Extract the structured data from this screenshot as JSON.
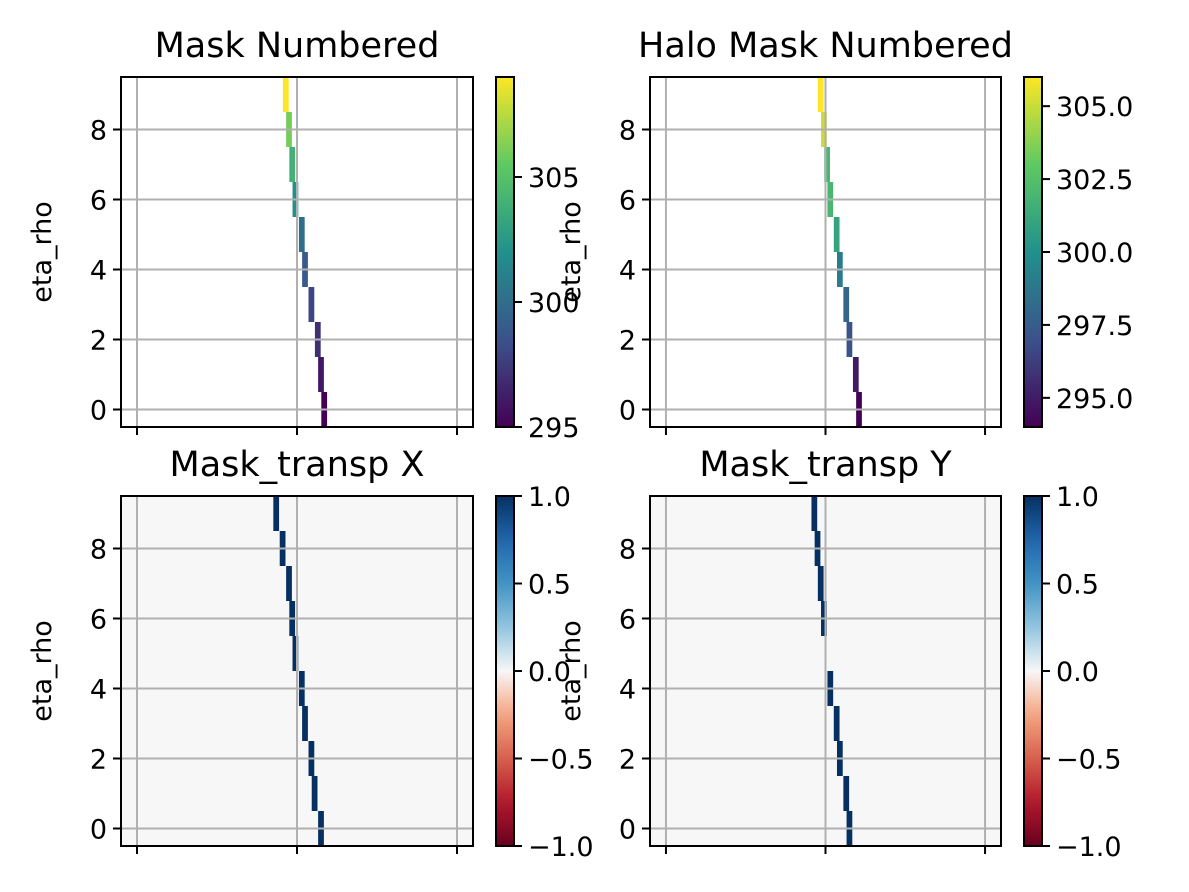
{
  "chart_data": [
    {
      "type": "heatmap",
      "title": "Mask Numbered",
      "xlabel": "",
      "ylabel": "eta_rho",
      "xlim": [
        -0.5,
        10.5
      ],
      "ylim": [
        -0.5,
        9.5
      ],
      "yticks": [
        "0",
        "2",
        "4",
        "6",
        "8"
      ],
      "grid": true,
      "colormap": "viridis",
      "colorbar": {
        "range": [
          295,
          309
        ],
        "ticks": [
          295,
          300,
          305
        ],
        "tick_labels": [
          "295",
          "300",
          "305"
        ]
      },
      "cells": [
        {
          "x": 5.85,
          "y0": -0.5,
          "y1": 0.5,
          "value": 295
        },
        {
          "x": 5.75,
          "y0": 0.5,
          "y1": 1.5,
          "value": 296
        },
        {
          "x": 5.65,
          "y0": 1.5,
          "y1": 2.5,
          "value": 297
        },
        {
          "x": 5.45,
          "y0": 2.5,
          "y1": 3.5,
          "value": 298
        },
        {
          "x": 5.25,
          "y0": 3.5,
          "y1": 4.5,
          "value": 299
        },
        {
          "x": 5.15,
          "y0": 4.5,
          "y1": 5.5,
          "value": 300
        },
        {
          "x": 4.95,
          "y0": 5.5,
          "y1": 6.5,
          "value": 302
        },
        {
          "x": 4.85,
          "y0": 6.5,
          "y1": 7.5,
          "value": 304
        },
        {
          "x": 4.75,
          "y0": 7.5,
          "y1": 8.5,
          "value": 306
        },
        {
          "x": 4.65,
          "y0": 8.5,
          "y1": 9.5,
          "value": 309
        }
      ]
    },
    {
      "type": "heatmap",
      "title": "Halo Mask Numbered",
      "xlabel": "",
      "ylabel": "eta_rho",
      "xlim": [
        -0.5,
        10.5
      ],
      "ylim": [
        -0.5,
        9.5
      ],
      "yticks": [
        "0",
        "2",
        "4",
        "6",
        "8"
      ],
      "grid": true,
      "colormap": "viridis",
      "colorbar": {
        "range": [
          294,
          306
        ],
        "ticks": [
          295,
          297.5,
          300,
          302.5,
          305
        ],
        "tick_labels": [
          "295.0",
          "297.5",
          "300.0",
          "302.5",
          "305.0"
        ]
      },
      "cells": [
        {
          "x": 6.05,
          "y0": -0.5,
          "y1": 0.5,
          "value": 294
        },
        {
          "x": 5.95,
          "y0": 0.5,
          "y1": 1.5,
          "value": 295
        },
        {
          "x": 5.75,
          "y0": 1.5,
          "y1": 2.5,
          "value": 297
        },
        {
          "x": 5.65,
          "y0": 2.5,
          "y1": 3.5,
          "value": 298
        },
        {
          "x": 5.45,
          "y0": 3.5,
          "y1": 4.5,
          "value": 299
        },
        {
          "x": 5.35,
          "y0": 4.5,
          "y1": 5.5,
          "value": 301
        },
        {
          "x": 5.15,
          "y0": 5.5,
          "y1": 6.5,
          "value": 302
        },
        {
          "x": 5.05,
          "y0": 6.5,
          "y1": 7.5,
          "value": 302
        },
        {
          "x": 4.95,
          "y0": 7.5,
          "y1": 8.5,
          "value": 305
        },
        {
          "x": 4.85,
          "y0": 8.5,
          "y1": 9.5,
          "value": 306
        }
      ]
    },
    {
      "type": "heatmap",
      "title": "Mask_transp X",
      "xlabel": "",
      "ylabel": "eta_rho",
      "xlim": [
        -0.5,
        10.5
      ],
      "ylim": [
        -0.5,
        9.5
      ],
      "yticks": [
        "0",
        "2",
        "4",
        "6",
        "8"
      ],
      "grid": true,
      "colormap": "RdBu",
      "background_value": 0,
      "colorbar": {
        "range": [
          -1,
          1
        ],
        "ticks": [
          -1,
          -0.5,
          0,
          0.5,
          1
        ],
        "tick_labels": [
          "−1.0",
          "−0.5",
          "0.0",
          "0.5",
          "1.0"
        ]
      },
      "cells": [
        {
          "x": 5.75,
          "y0": -0.5,
          "y1": 0.5,
          "value": 1
        },
        {
          "x": 5.55,
          "y0": 0.5,
          "y1": 1.5,
          "value": 1
        },
        {
          "x": 5.45,
          "y0": 1.5,
          "y1": 2.5,
          "value": 1
        },
        {
          "x": 5.25,
          "y0": 2.5,
          "y1": 3.5,
          "value": 1
        },
        {
          "x": 5.15,
          "y0": 3.5,
          "y1": 4.5,
          "value": 1
        },
        {
          "x": 4.95,
          "y0": 4.5,
          "y1": 5.5,
          "value": 1
        },
        {
          "x": 4.85,
          "y0": 5.5,
          "y1": 6.5,
          "value": 1
        },
        {
          "x": 4.75,
          "y0": 6.5,
          "y1": 7.5,
          "value": 1
        },
        {
          "x": 4.55,
          "y0": 7.5,
          "y1": 8.5,
          "value": 1
        },
        {
          "x": 4.35,
          "y0": 8.5,
          "y1": 9.5,
          "value": 1
        }
      ]
    },
    {
      "type": "heatmap",
      "title": "Mask_transp Y",
      "xlabel": "",
      "ylabel": "eta_rho",
      "xlim": [
        -0.5,
        10.5
      ],
      "ylim": [
        -0.5,
        9.5
      ],
      "yticks": [
        "0",
        "2",
        "4",
        "6",
        "8"
      ],
      "grid": true,
      "colormap": "RdBu",
      "background_value": 0,
      "colorbar": {
        "range": [
          -1,
          1
        ],
        "ticks": [
          -1,
          -0.5,
          0,
          0.5,
          1
        ],
        "tick_labels": [
          "−1.0",
          "−0.5",
          "0.0",
          "0.5",
          "1.0"
        ]
      },
      "cells": [
        {
          "x": 5.75,
          "y0": -0.5,
          "y1": 0.5,
          "value": 1
        },
        {
          "x": 5.65,
          "y0": 0.5,
          "y1": 1.5,
          "value": 1
        },
        {
          "x": 5.45,
          "y0": 1.5,
          "y1": 2.5,
          "value": 1
        },
        {
          "x": 5.35,
          "y0": 2.5,
          "y1": 3.5,
          "value": 1
        },
        {
          "x": 5.15,
          "y0": 3.5,
          "y1": 4.5,
          "value": 1
        },
        {
          "x": 4.95,
          "y0": 5.5,
          "y1": 6.5,
          "value": 1
        },
        {
          "x": 4.85,
          "y0": 6.5,
          "y1": 7.5,
          "value": 1
        },
        {
          "x": 4.75,
          "y0": 7.5,
          "y1": 8.5,
          "value": 1
        },
        {
          "x": 4.65,
          "y0": 8.5,
          "y1": 9.5,
          "value": 1
        }
      ]
    }
  ]
}
